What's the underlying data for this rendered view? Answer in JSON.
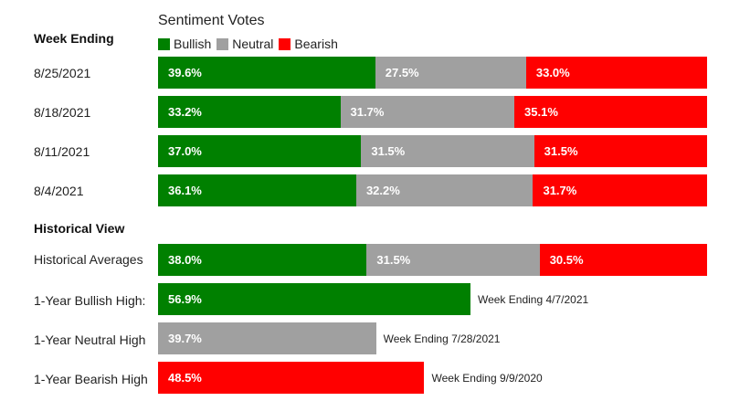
{
  "chart_data": {
    "type": "bar",
    "orientation": "horizontal",
    "stacked": true,
    "title": "Sentiment Votes",
    "legend": [
      {
        "name": "Bullish",
        "color": "#008000"
      },
      {
        "name": "Neutral",
        "color": "#a0a0a0"
      },
      {
        "name": "Bearish",
        "color": "#ff0000"
      }
    ],
    "week_header": "Week Ending",
    "weeks": [
      {
        "label": "8/25/2021",
        "values": [
          39.6,
          27.5,
          33.0
        ],
        "labels": [
          "39.6%",
          "27.5%",
          "33.0%"
        ]
      },
      {
        "label": "8/18/2021",
        "values": [
          33.2,
          31.7,
          35.1
        ],
        "labels": [
          "33.2%",
          "31.7%",
          "35.1%"
        ]
      },
      {
        "label": "8/11/2021",
        "values": [
          37.0,
          31.5,
          31.5
        ],
        "labels": [
          "37.0%",
          "31.5%",
          "31.5%"
        ]
      },
      {
        "label": "8/4/2021",
        "values": [
          36.1,
          32.2,
          31.7
        ],
        "labels": [
          "36.1%",
          "32.2%",
          "31.7%"
        ]
      }
    ],
    "historical_header": "Historical View",
    "historical_averages": {
      "label": "Historical Averages",
      "values": [
        38.0,
        31.5,
        30.5
      ],
      "labels": [
        "38.0%",
        "31.5%",
        "30.5%"
      ]
    },
    "highs": [
      {
        "label": "1-Year Bullish High:",
        "series": "Bullish",
        "color": "#008000",
        "value": 56.9,
        "value_label": "56.9%",
        "note": "Week Ending 4/7/2021"
      },
      {
        "label": "1-Year Neutral High",
        "series": "Neutral",
        "color": "#a0a0a0",
        "value": 39.7,
        "value_label": "39.7%",
        "note": "Week Ending 7/28/2021"
      },
      {
        "label": "1-Year Bearish High",
        "series": "Bearish",
        "color": "#ff0000",
        "value": 48.5,
        "value_label": "48.5%",
        "note": "Week Ending 9/9/2020"
      }
    ]
  }
}
